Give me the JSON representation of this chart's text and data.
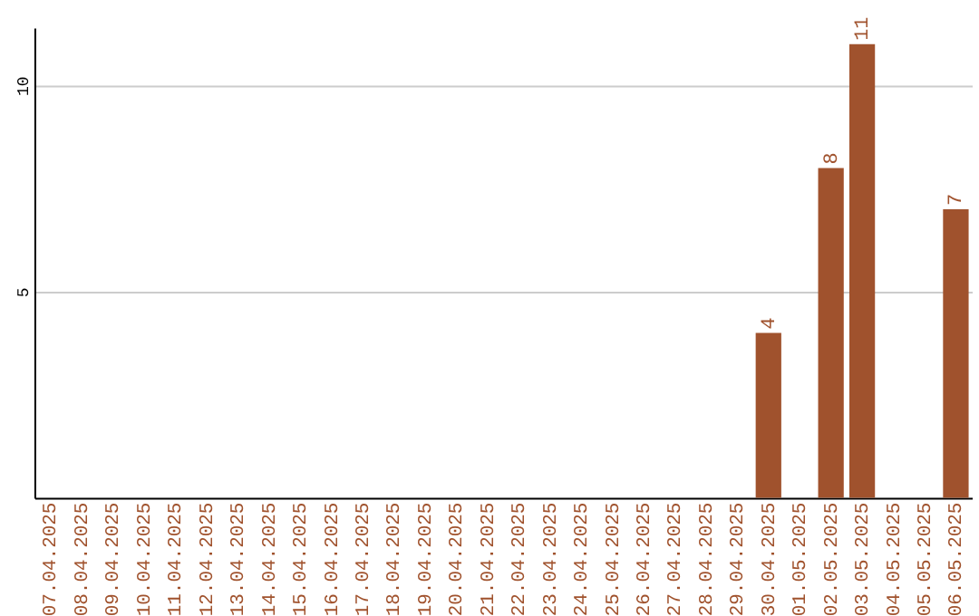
{
  "chart_data": {
    "type": "bar",
    "categories": [
      "07.04.2025",
      "08.04.2025",
      "09.04.2025",
      "10.04.2025",
      "11.04.2025",
      "12.04.2025",
      "13.04.2025",
      "14.04.2025",
      "15.04.2025",
      "16.04.2025",
      "17.04.2025",
      "18.04.2025",
      "19.04.2025",
      "20.04.2025",
      "21.04.2025",
      "22.04.2025",
      "23.04.2025",
      "24.04.2025",
      "25.04.2025",
      "26.04.2025",
      "27.04.2025",
      "28.04.2025",
      "29.04.2025",
      "30.04.2025",
      "01.05.2025",
      "02.05.2025",
      "03.05.2025",
      "04.05.2025",
      "05.05.2025",
      "06.05.2025"
    ],
    "values": [
      null,
      null,
      null,
      null,
      null,
      null,
      null,
      null,
      null,
      null,
      null,
      null,
      null,
      null,
      null,
      null,
      null,
      null,
      null,
      null,
      null,
      null,
      null,
      4,
      null,
      8,
      11,
      null,
      null,
      7
    ],
    "color": "#a0522d",
    "ylim": [
      0,
      11.4
    ],
    "yticks": [
      5,
      10
    ],
    "grid": "y",
    "data_labels": true
  }
}
